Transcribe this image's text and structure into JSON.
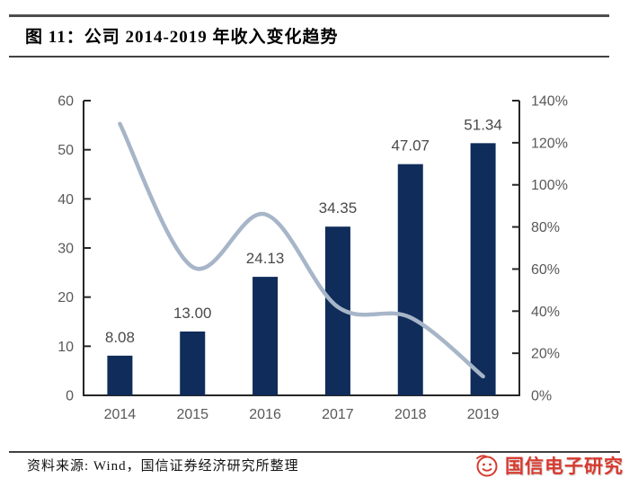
{
  "header": {
    "title": "图 11：公司 2014-2019 年收入变化趋势"
  },
  "footer": {
    "source": "资料来源: Wind，国信证券经济研究所整理",
    "badge_label": "国信电子研究"
  },
  "colors": {
    "bar": "#0f2c5a",
    "line": "#a7b5c8",
    "axis": "#262626",
    "tick_label": "#595959",
    "bar_label": "#4a4a4a",
    "badge_red": "#d8392e",
    "rule_gray": "#404040"
  },
  "chart_data": {
    "type": "bar",
    "subtype": "bar+line-combo",
    "categories": [
      "2014",
      "2015",
      "2016",
      "2017",
      "2018",
      "2019"
    ],
    "series": [
      {
        "name": "revenue",
        "type": "bar",
        "axis": "left",
        "values": [
          8.08,
          13.0,
          24.13,
          34.35,
          47.07,
          51.34
        ],
        "labels": [
          "8.08",
          "13.00",
          "24.13",
          "34.35",
          "47.07",
          "51.34"
        ]
      },
      {
        "name": "growth-rate",
        "type": "line",
        "axis": "right",
        "values_percent": [
          129,
          61,
          86,
          42,
          37,
          9
        ]
      }
    ],
    "left_axis": {
      "min": 0,
      "max": 60,
      "tick_labels": [
        "0",
        "10",
        "20",
        "30",
        "40",
        "50",
        "60"
      ]
    },
    "right_axis": {
      "min": 0,
      "max": 140,
      "tick_labels": [
        "0%",
        "20%",
        "40%",
        "60%",
        "80%",
        "100%",
        "120%",
        "140%"
      ]
    },
    "grid": false,
    "legend": false,
    "title": "公司 2014-2019 年收入变化趋势"
  }
}
